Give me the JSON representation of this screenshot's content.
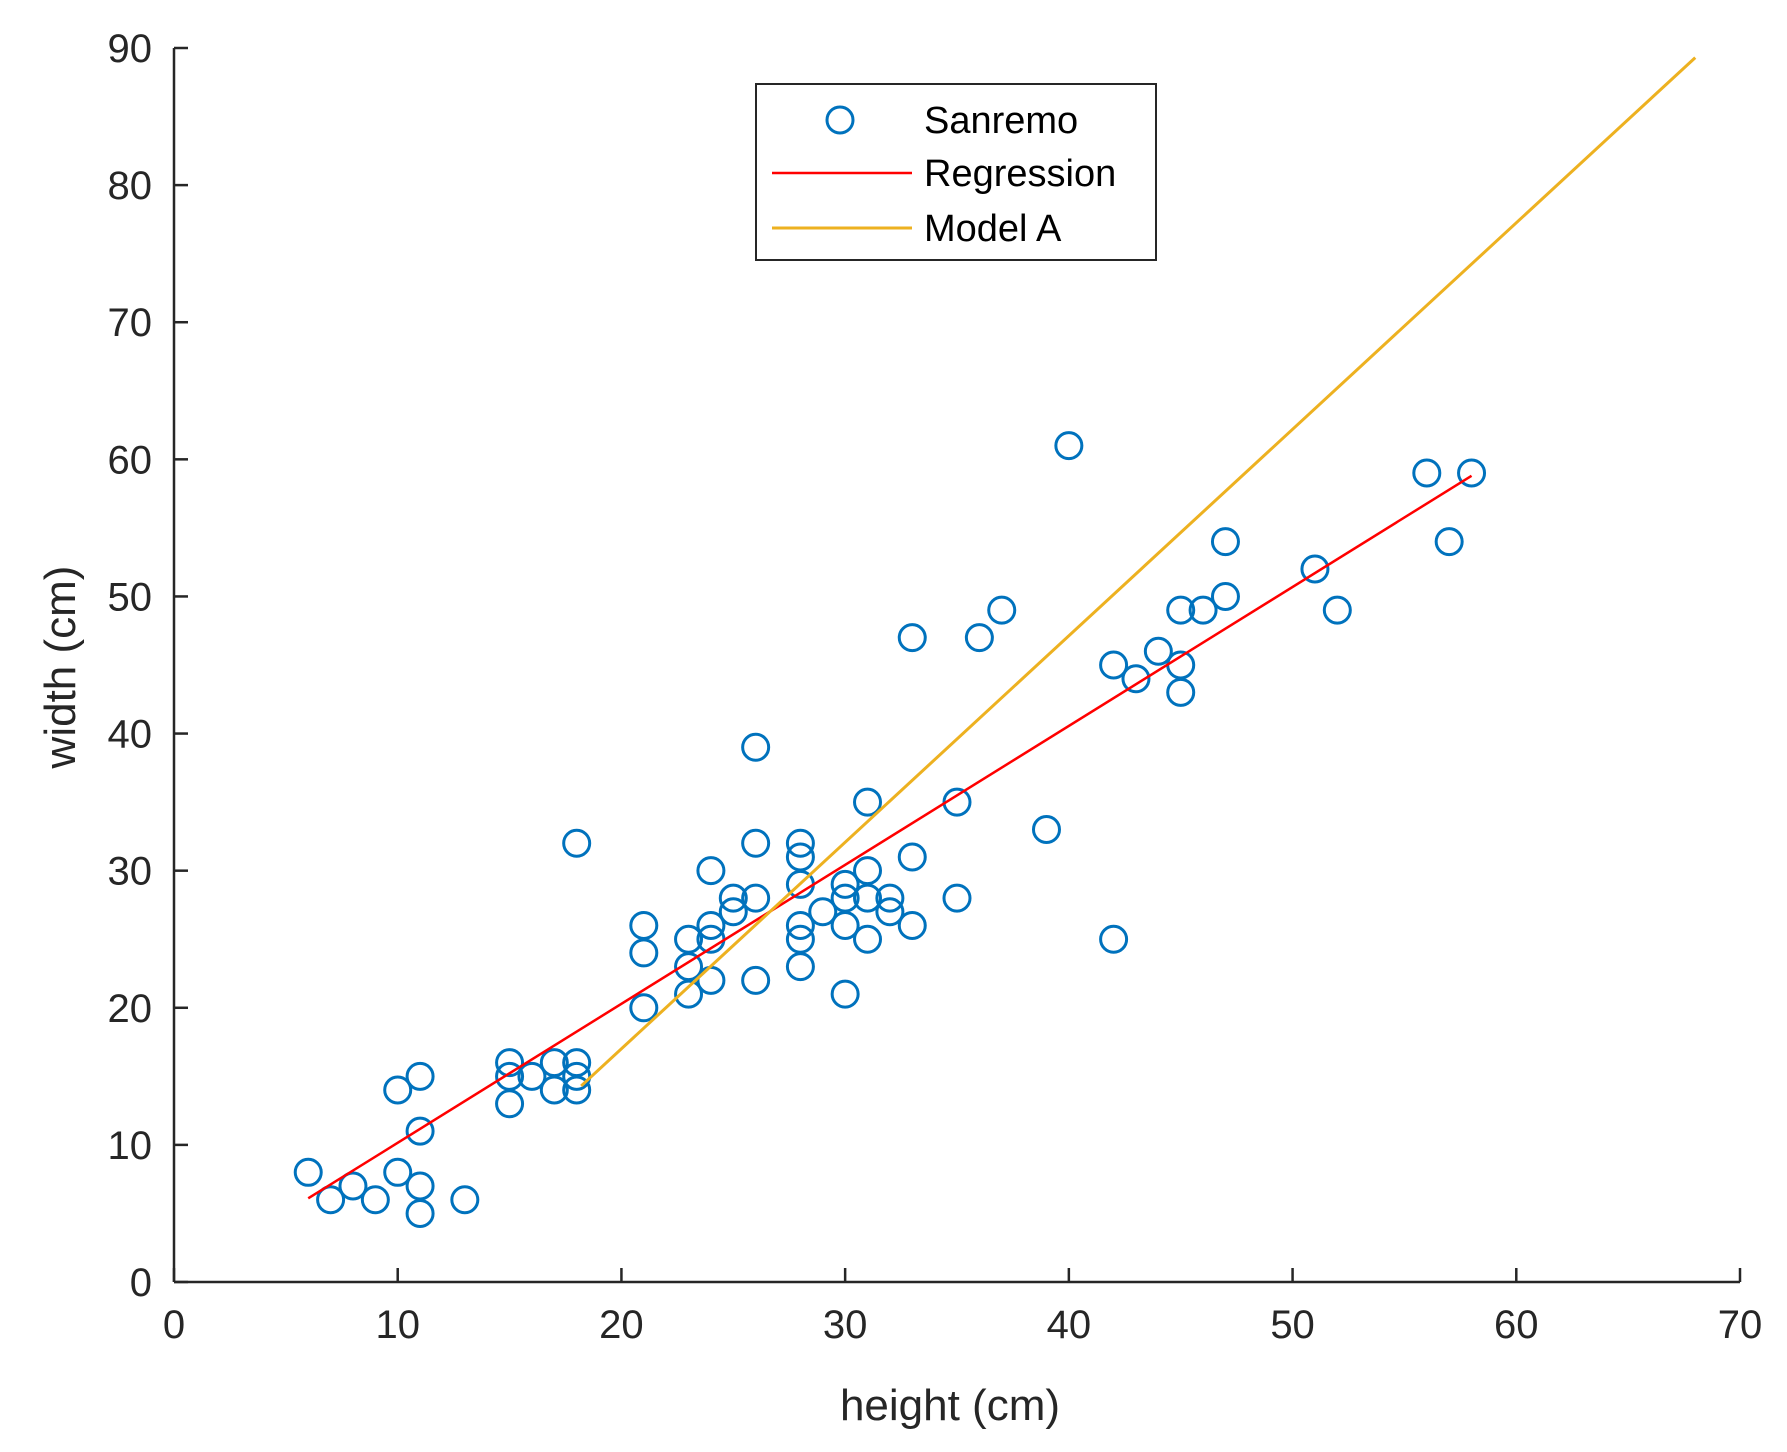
{
  "chart_data": {
    "type": "scatter",
    "title": "",
    "xlabel": "height (cm)",
    "ylabel": "width (cm)",
    "xlim": [
      0,
      70
    ],
    "ylim": [
      0,
      90
    ],
    "xticks": [
      0,
      10,
      20,
      30,
      40,
      50,
      60,
      70
    ],
    "yticks": [
      0,
      10,
      20,
      30,
      40,
      50,
      60,
      70,
      80,
      90
    ],
    "grid": false,
    "legend_position": "top-center",
    "series": [
      {
        "name": "Sanremo",
        "kind": "scatter",
        "marker": "circle-open",
        "color": "#0072BD",
        "points": [
          [
            6,
            8
          ],
          [
            7,
            6
          ],
          [
            8,
            7
          ],
          [
            9,
            6
          ],
          [
            10,
            14
          ],
          [
            10,
            8
          ],
          [
            11,
            15
          ],
          [
            11,
            11
          ],
          [
            11,
            7
          ],
          [
            11,
            5
          ],
          [
            13,
            6
          ],
          [
            15,
            16
          ],
          [
            15,
            15
          ],
          [
            15,
            13
          ],
          [
            16,
            15
          ],
          [
            17,
            16
          ],
          [
            17,
            14
          ],
          [
            18,
            32
          ],
          [
            18,
            16
          ],
          [
            18,
            15
          ],
          [
            18,
            14
          ],
          [
            21,
            26
          ],
          [
            21,
            24
          ],
          [
            21,
            20
          ],
          [
            23,
            25
          ],
          [
            23,
            23
          ],
          [
            23,
            21
          ],
          [
            24,
            30
          ],
          [
            24,
            26
          ],
          [
            24,
            25
          ],
          [
            24,
            22
          ],
          [
            25,
            28
          ],
          [
            25,
            27
          ],
          [
            26,
            39
          ],
          [
            26,
            32
          ],
          [
            26,
            28
          ],
          [
            26,
            22
          ],
          [
            28,
            32
          ],
          [
            28,
            31
          ],
          [
            28,
            29
          ],
          [
            28,
            26
          ],
          [
            28,
            25
          ],
          [
            28,
            23
          ],
          [
            29,
            27
          ],
          [
            30,
            29
          ],
          [
            30,
            28
          ],
          [
            30,
            26
          ],
          [
            30,
            21
          ],
          [
            31,
            35
          ],
          [
            31,
            30
          ],
          [
            31,
            28
          ],
          [
            31,
            25
          ],
          [
            32,
            28
          ],
          [
            32,
            27
          ],
          [
            33,
            47
          ],
          [
            33,
            31
          ],
          [
            33,
            26
          ],
          [
            35,
            35
          ],
          [
            35,
            28
          ],
          [
            36,
            47
          ],
          [
            37,
            49
          ],
          [
            39,
            33
          ],
          [
            40,
            61
          ],
          [
            42,
            45
          ],
          [
            42,
            25
          ],
          [
            43,
            44
          ],
          [
            44,
            46
          ],
          [
            45,
            49
          ],
          [
            45,
            45
          ],
          [
            45,
            43
          ],
          [
            46,
            49
          ],
          [
            47,
            54
          ],
          [
            47,
            50
          ],
          [
            51,
            52
          ],
          [
            52,
            49
          ],
          [
            56,
            59
          ],
          [
            57,
            54
          ],
          [
            58,
            59
          ]
        ]
      },
      {
        "name": "Regression",
        "kind": "line",
        "color": "#FF0000",
        "points": [
          [
            6,
            6.1
          ],
          [
            58,
            58.8
          ]
        ]
      },
      {
        "name": "Model A",
        "kind": "line",
        "color": "#EDB120",
        "points": [
          [
            18.2,
            14.3
          ],
          [
            68,
            89.3
          ]
        ]
      }
    ]
  }
}
